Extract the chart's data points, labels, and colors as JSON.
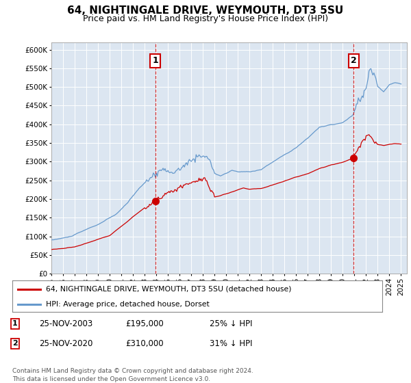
{
  "title": "64, NIGHTINGALE DRIVE, WEYMOUTH, DT3 5SU",
  "subtitle": "Price paid vs. HM Land Registry's House Price Index (HPI)",
  "ylim": [
    0,
    620000
  ],
  "yticks": [
    0,
    50000,
    100000,
    150000,
    200000,
    250000,
    300000,
    350000,
    400000,
    450000,
    500000,
    550000,
    600000
  ],
  "ytick_labels": [
    "£0",
    "£50K",
    "£100K",
    "£150K",
    "£200K",
    "£250K",
    "£300K",
    "£350K",
    "£400K",
    "£450K",
    "£500K",
    "£550K",
    "£600K"
  ],
  "xlim_start": 1995.0,
  "xlim_end": 2025.5,
  "transaction1_x": 2003.92,
  "transaction1_y": 195000,
  "transaction1_label": "25-NOV-2003",
  "transaction1_price": "£195,000",
  "transaction1_hpi": "25% ↓ HPI",
  "transaction2_x": 2020.92,
  "transaction2_y": 310000,
  "transaction2_label": "25-NOV-2020",
  "transaction2_price": "£310,000",
  "transaction2_hpi": "31% ↓ HPI",
  "line1_color": "#cc0000",
  "line2_color": "#6699cc",
  "plot_bg_color": "#dce6f1",
  "grid_color": "#ffffff",
  "legend_line1": "64, NIGHTINGALE DRIVE, WEYMOUTH, DT3 5SU (detached house)",
  "legend_line2": "HPI: Average price, detached house, Dorset",
  "footer": "Contains HM Land Registry data © Crown copyright and database right 2024.\nThis data is licensed under the Open Government Licence v3.0.",
  "title_fontsize": 11,
  "subtitle_fontsize": 9,
  "axis_fontsize": 7.5
}
